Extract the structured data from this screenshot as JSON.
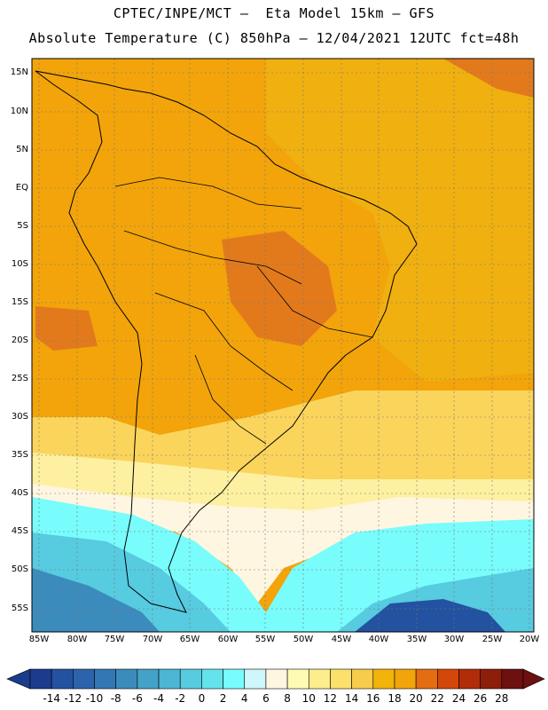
{
  "header": {
    "line1": "CPTEC/INPE/MCT –  Eta Model 15km – GFS",
    "line2": "Absolute Temperature (C) 850hPa – 12/04/2021 12UTC fct=48h"
  },
  "map": {
    "lat_labels": [
      "15N",
      "10N",
      "5N",
      "EQ",
      "5S",
      "10S",
      "15S",
      "20S",
      "25S",
      "30S",
      "35S",
      "40S",
      "45S",
      "50S",
      "55S"
    ],
    "lon_labels": [
      "85W",
      "80W",
      "75W",
      "70W",
      "65W",
      "60W",
      "55W",
      "50W",
      "45W",
      "40W",
      "35W",
      "30W",
      "25W",
      "20W"
    ]
  },
  "colorbar": {
    "labels": [
      "-14",
      "-12",
      "-10",
      "-8",
      "-6",
      "-4",
      "-2",
      "0",
      "2",
      "4",
      "6",
      "8",
      "10",
      "12",
      "14",
      "16",
      "18",
      "20",
      "22",
      "24",
      "26",
      "28"
    ],
    "colors": [
      "#1b3c8c",
      "#2352a1",
      "#2b64ad",
      "#3378b5",
      "#3b8cbd",
      "#44a2c8",
      "#4cb6d4",
      "#57cbe0",
      "#64e3ec",
      "#79fcfc",
      "#cff6fa",
      "#fef6e0",
      "#fefcb4",
      "#fcee8c",
      "#fbe06a",
      "#f6cc4c",
      "#f2b30a",
      "#f2a40a",
      "#e46c12",
      "#d4470a",
      "#b22c0a",
      "#8c1e0a",
      "#6c1010"
    ]
  }
}
